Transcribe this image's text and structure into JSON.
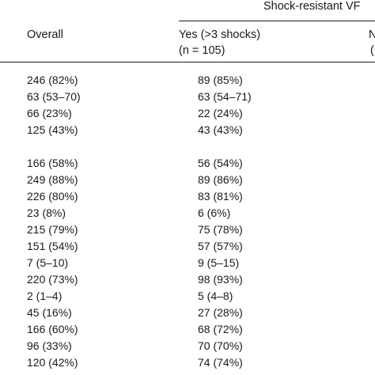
{
  "header": {
    "group_title": "Shock-resistant VF",
    "col_overall": "Overall",
    "col_yes_line1": "Yes (>3 shocks)",
    "col_yes_line2": "(n = 105)",
    "col_no_line1": "N",
    "col_no_line2": "("
  },
  "rows": [
    {
      "overall": "246 (82%)",
      "yes": "89 (85%)"
    },
    {
      "overall": "63 (53–70)",
      "yes": "63 (54–71)"
    },
    {
      "overall": "66 (23%)",
      "yes": "22 (24%)"
    },
    {
      "overall": "125 (43%)",
      "yes": "43 (43%)"
    },
    {
      "overall": "166 (58%)",
      "yes": "56 (54%)"
    },
    {
      "overall": "249 (88%)",
      "yes": "89 (86%)"
    },
    {
      "overall": "226 (80%)",
      "yes": "83 (81%)"
    },
    {
      "overall": "23 (8%)",
      "yes": "6 (6%)"
    },
    {
      "overall": "215 (79%)",
      "yes": "75 (78%)"
    },
    {
      "overall": "151 (54%)",
      "yes": "57 (57%)"
    },
    {
      "overall": "7 (5–10)",
      "yes": "9 (5–15)"
    },
    {
      "overall": "220 (73%)",
      "yes": "98 (93%)"
    },
    {
      "overall": "2 (1–4)",
      "yes": "5 (4–8)"
    },
    {
      "overall": "45 (16%)",
      "yes": "27 (28%)"
    },
    {
      "overall": "166 (60%)",
      "yes": "68 (72%)"
    },
    {
      "overall": "96 (33%)",
      "yes": "70 (70%)"
    },
    {
      "overall": "120 (42%)",
      "yes": "74 (74%)"
    }
  ]
}
